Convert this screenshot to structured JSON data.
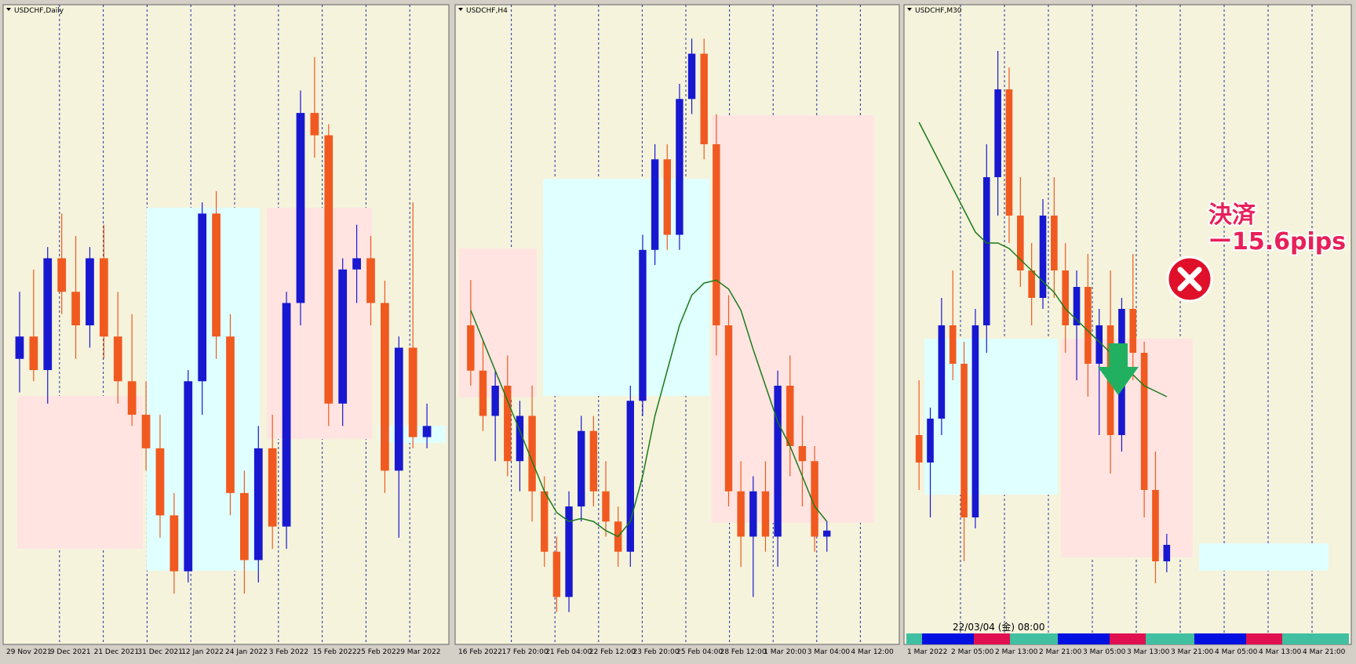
{
  "panels": [
    {
      "title": "USDCHF,Daily",
      "ylim": [
        0.908,
        0.935
      ],
      "xlabels": [
        "29 Nov 2021",
        "9 Dec 2021",
        "21 Dec 2021",
        "31 Dec 2021",
        "12 Jan 2022",
        "24 Jan 2022",
        "3 Feb 2022",
        "15 Feb 2022",
        "25 Feb 2022",
        "9 Mar 2022"
      ],
      "candles": [
        [
          0.92,
          0.923,
          0.9185,
          0.921
        ],
        [
          0.921,
          0.924,
          0.919,
          0.9195
        ],
        [
          0.9195,
          0.925,
          0.918,
          0.9245
        ],
        [
          0.9245,
          0.9265,
          0.922,
          0.923
        ],
        [
          0.923,
          0.9255,
          0.92,
          0.9215
        ],
        [
          0.9215,
          0.925,
          0.9205,
          0.9245
        ],
        [
          0.9245,
          0.926,
          0.92,
          0.921
        ],
        [
          0.921,
          0.923,
          0.918,
          0.919
        ],
        [
          0.919,
          0.922,
          0.917,
          0.9175
        ],
        [
          0.9175,
          0.919,
          0.915,
          0.916
        ],
        [
          0.916,
          0.9175,
          0.912,
          0.913
        ],
        [
          0.913,
          0.914,
          0.9095,
          0.9105
        ],
        [
          0.9105,
          0.9195,
          0.91,
          0.919
        ],
        [
          0.919,
          0.927,
          0.9175,
          0.9265
        ],
        [
          0.9265,
          0.9275,
          0.92,
          0.921
        ],
        [
          0.921,
          0.922,
          0.913,
          0.914
        ],
        [
          0.914,
          0.915,
          0.9095,
          0.911
        ],
        [
          0.911,
          0.917,
          0.91,
          0.916
        ],
        [
          0.916,
          0.9175,
          0.9115,
          0.9125
        ],
        [
          0.9125,
          0.923,
          0.9115,
          0.9225
        ],
        [
          0.9225,
          0.932,
          0.9215,
          0.931
        ],
        [
          0.931,
          0.9335,
          0.929,
          0.93
        ],
        [
          0.93,
          0.9305,
          0.917,
          0.918
        ],
        [
          0.918,
          0.9245,
          0.917,
          0.924
        ],
        [
          0.924,
          0.926,
          0.9225,
          0.9245
        ],
        [
          0.9245,
          0.9255,
          0.9215,
          0.9225
        ],
        [
          0.9225,
          0.9235,
          0.914,
          0.915
        ],
        [
          0.915,
          0.921,
          0.912,
          0.9205
        ],
        [
          0.9205,
          0.927,
          0.916,
          0.9165
        ],
        [
          0.9165,
          0.918,
          0.916,
          0.917
        ]
      ]
    },
    {
      "title": "USDCHF,H4",
      "ylim": [
        0.913,
        0.933
      ],
      "xlabels": [
        "16 Feb 2022",
        "17 Feb 20:00",
        "21 Feb 04:00",
        "22 Feb 12:00",
        "23 Feb 20:00",
        "25 Feb 04:00",
        "28 Feb 12:00",
        "1 Mar 20:00",
        "3 Mar 04:00",
        "4 Mar 12:00"
      ],
      "candles": [
        [
          0.923,
          0.9245,
          0.921,
          0.9215
        ],
        [
          0.9215,
          0.9225,
          0.9195,
          0.92
        ],
        [
          0.92,
          0.9215,
          0.9185,
          0.921
        ],
        [
          0.921,
          0.922,
          0.918,
          0.9185
        ],
        [
          0.9185,
          0.9205,
          0.9175,
          0.92
        ],
        [
          0.92,
          0.921,
          0.9165,
          0.9175
        ],
        [
          0.9175,
          0.918,
          0.915,
          0.9155
        ],
        [
          0.9155,
          0.916,
          0.9135,
          0.914
        ],
        [
          0.914,
          0.9175,
          0.9135,
          0.917
        ],
        [
          0.917,
          0.92,
          0.9165,
          0.9195
        ],
        [
          0.9195,
          0.92,
          0.917,
          0.9175
        ],
        [
          0.9175,
          0.9185,
          0.916,
          0.9165
        ],
        [
          0.9165,
          0.917,
          0.915,
          0.9155
        ],
        [
          0.9155,
          0.921,
          0.915,
          0.9205
        ],
        [
          0.9205,
          0.926,
          0.92,
          0.9255
        ],
        [
          0.9255,
          0.929,
          0.925,
          0.9285
        ],
        [
          0.9285,
          0.929,
          0.9255,
          0.926
        ],
        [
          0.926,
          0.931,
          0.9255,
          0.9305
        ],
        [
          0.9305,
          0.9325,
          0.93,
          0.932
        ],
        [
          0.932,
          0.9325,
          0.9285,
          0.929
        ],
        [
          0.929,
          0.93,
          0.922,
          0.923
        ],
        [
          0.923,
          0.924,
          0.917,
          0.9175
        ],
        [
          0.9175,
          0.9185,
          0.915,
          0.916
        ],
        [
          0.916,
          0.918,
          0.914,
          0.9175
        ],
        [
          0.9175,
          0.9185,
          0.9155,
          0.916
        ],
        [
          0.916,
          0.9215,
          0.915,
          0.921
        ],
        [
          0.921,
          0.922,
          0.918,
          0.919
        ],
        [
          0.919,
          0.92,
          0.917,
          0.9185
        ],
        [
          0.9185,
          0.919,
          0.9155,
          0.916
        ],
        [
          0.916,
          0.9165,
          0.9155,
          0.9162
        ]
      ],
      "ma": [
        0.9235,
        0.9225,
        0.9215,
        0.9205,
        0.9195,
        0.9185,
        0.9175,
        0.9168,
        0.9165,
        0.9166,
        0.9165,
        0.9162,
        0.916,
        0.9165,
        0.918,
        0.92,
        0.9215,
        0.923,
        0.924,
        0.9244,
        0.9245,
        0.9242,
        0.9235,
        0.9222,
        0.921,
        0.9198,
        0.919,
        0.918,
        0.917,
        0.9165
      ]
    },
    {
      "title": "USDCHF,M30",
      "ylim": [
        0.918,
        0.929
      ],
      "xlabels": [
        "1 Mar 2022",
        "2 Mar 05:00",
        "2 Mar 13:00",
        "2 Mar 21:00",
        "3 Mar 05:00",
        "3 Mar 13:00",
        "3 Mar 21:00",
        "4 Mar 05:00",
        "4 Mar 13:00",
        "4 Mar 21:00"
      ],
      "candles": [
        [
          0.9215,
          0.9225,
          0.9205,
          0.921
        ],
        [
          0.921,
          0.922,
          0.92,
          0.9218
        ],
        [
          0.9218,
          0.924,
          0.9215,
          0.9235
        ],
        [
          0.9235,
          0.9245,
          0.9225,
          0.9228
        ],
        [
          0.9228,
          0.9232,
          0.9192,
          0.92
        ],
        [
          0.92,
          0.9238,
          0.9198,
          0.9235
        ],
        [
          0.9235,
          0.9268,
          0.923,
          0.9262
        ],
        [
          0.9262,
          0.9285,
          0.9255,
          0.9278
        ],
        [
          0.9278,
          0.9282,
          0.925,
          0.9255
        ],
        [
          0.9255,
          0.9262,
          0.9242,
          0.9245
        ],
        [
          0.9245,
          0.925,
          0.9235,
          0.924
        ],
        [
          0.924,
          0.9258,
          0.9238,
          0.9255
        ],
        [
          0.9255,
          0.9262,
          0.924,
          0.9245
        ],
        [
          0.9245,
          0.925,
          0.923,
          0.9235
        ],
        [
          0.9235,
          0.9245,
          0.9225,
          0.9242
        ],
        [
          0.9242,
          0.9248,
          0.9222,
          0.9228
        ],
        [
          0.9228,
          0.9238,
          0.9215,
          0.9235
        ],
        [
          0.9235,
          0.9245,
          0.9208,
          0.9215
        ],
        [
          0.9215,
          0.924,
          0.9212,
          0.9238
        ],
        [
          0.9238,
          0.9248,
          0.9225,
          0.923
        ],
        [
          0.923,
          0.9232,
          0.92,
          0.9205
        ],
        [
          0.9205,
          0.9212,
          0.9188,
          0.9192
        ],
        [
          0.9192,
          0.9197,
          0.919,
          0.9195
        ]
      ],
      "ma": [
        0.9272,
        0.9268,
        0.9264,
        0.926,
        0.9256,
        0.9252,
        0.925,
        0.925,
        0.9249,
        0.9247,
        0.9245,
        0.9243,
        0.9241,
        0.9238,
        0.9236,
        0.9234,
        0.9232,
        0.923,
        0.9228,
        0.9226,
        0.9224,
        0.9223,
        0.9222
      ]
    }
  ],
  "annotation": {
    "label": "決済",
    "pips": "ー15.6pips"
  },
  "crosshair_time": "22/03/04 (金) 08:00"
}
